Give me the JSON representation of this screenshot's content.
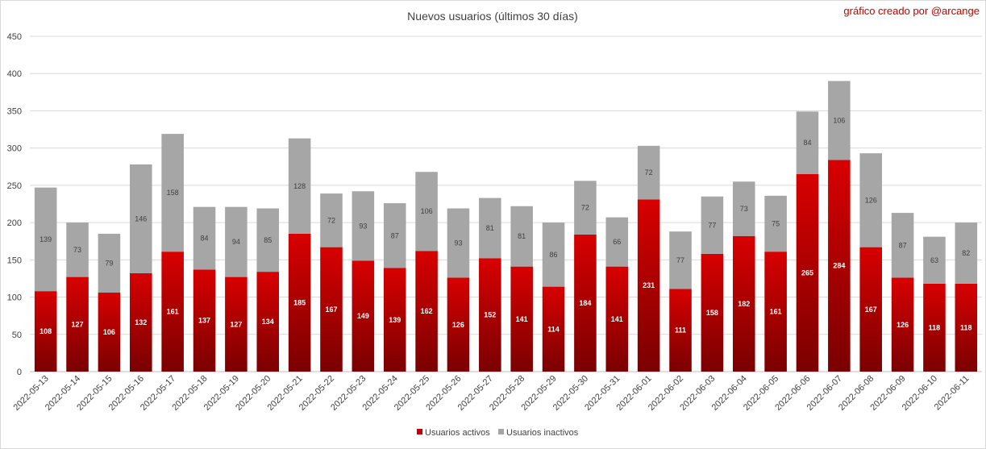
{
  "chart_data": {
    "type": "bar",
    "stacked": true,
    "title": "Nuevos usuarios (últimos 30 días)",
    "credit": "gráfico creado por @arcange",
    "categories": [
      "2022-05-13",
      "2022-05-14",
      "2022-05-15",
      "2022-05-16",
      "2022-05-17",
      "2022-05-18",
      "2022-05-19",
      "2022-05-20",
      "2022-05-21",
      "2022-05-22",
      "2022-05-23",
      "2022-05-24",
      "2022-05-25",
      "2022-05-26",
      "2022-05-27",
      "2022-05-28",
      "2022-05-29",
      "2022-05-30",
      "2022-05-31",
      "2022-06-01",
      "2022-06-02",
      "2022-06-03",
      "2022-06-04",
      "2022-06-05",
      "2022-06-06",
      "2022-06-07",
      "2022-06-08",
      "2022-06-09",
      "2022-06-10",
      "2022-06-11"
    ],
    "series": [
      {
        "name": "Usuarios activos",
        "color": "#c00000",
        "values": [
          108,
          127,
          106,
          132,
          161,
          137,
          127,
          134,
          185,
          167,
          149,
          139,
          162,
          126,
          152,
          141,
          114,
          184,
          141,
          231,
          111,
          158,
          182,
          161,
          265,
          284,
          167,
          126,
          118,
          118
        ]
      },
      {
        "name": "Usuarios inactivos",
        "color": "#a6a6a6",
        "values": [
          139,
          73,
          79,
          146,
          158,
          84,
          94,
          85,
          128,
          72,
          93,
          87,
          106,
          93,
          81,
          81,
          86,
          72,
          66,
          72,
          77,
          77,
          73,
          75,
          84,
          106,
          126,
          87,
          63,
          82
        ]
      }
    ],
    "ylim": [
      0,
      450
    ],
    "yticks": [
      "0",
      "50",
      "100",
      "150",
      "200",
      "250",
      "300",
      "350",
      "400",
      "450"
    ],
    "grid": true,
    "legend_position": "bottom"
  }
}
